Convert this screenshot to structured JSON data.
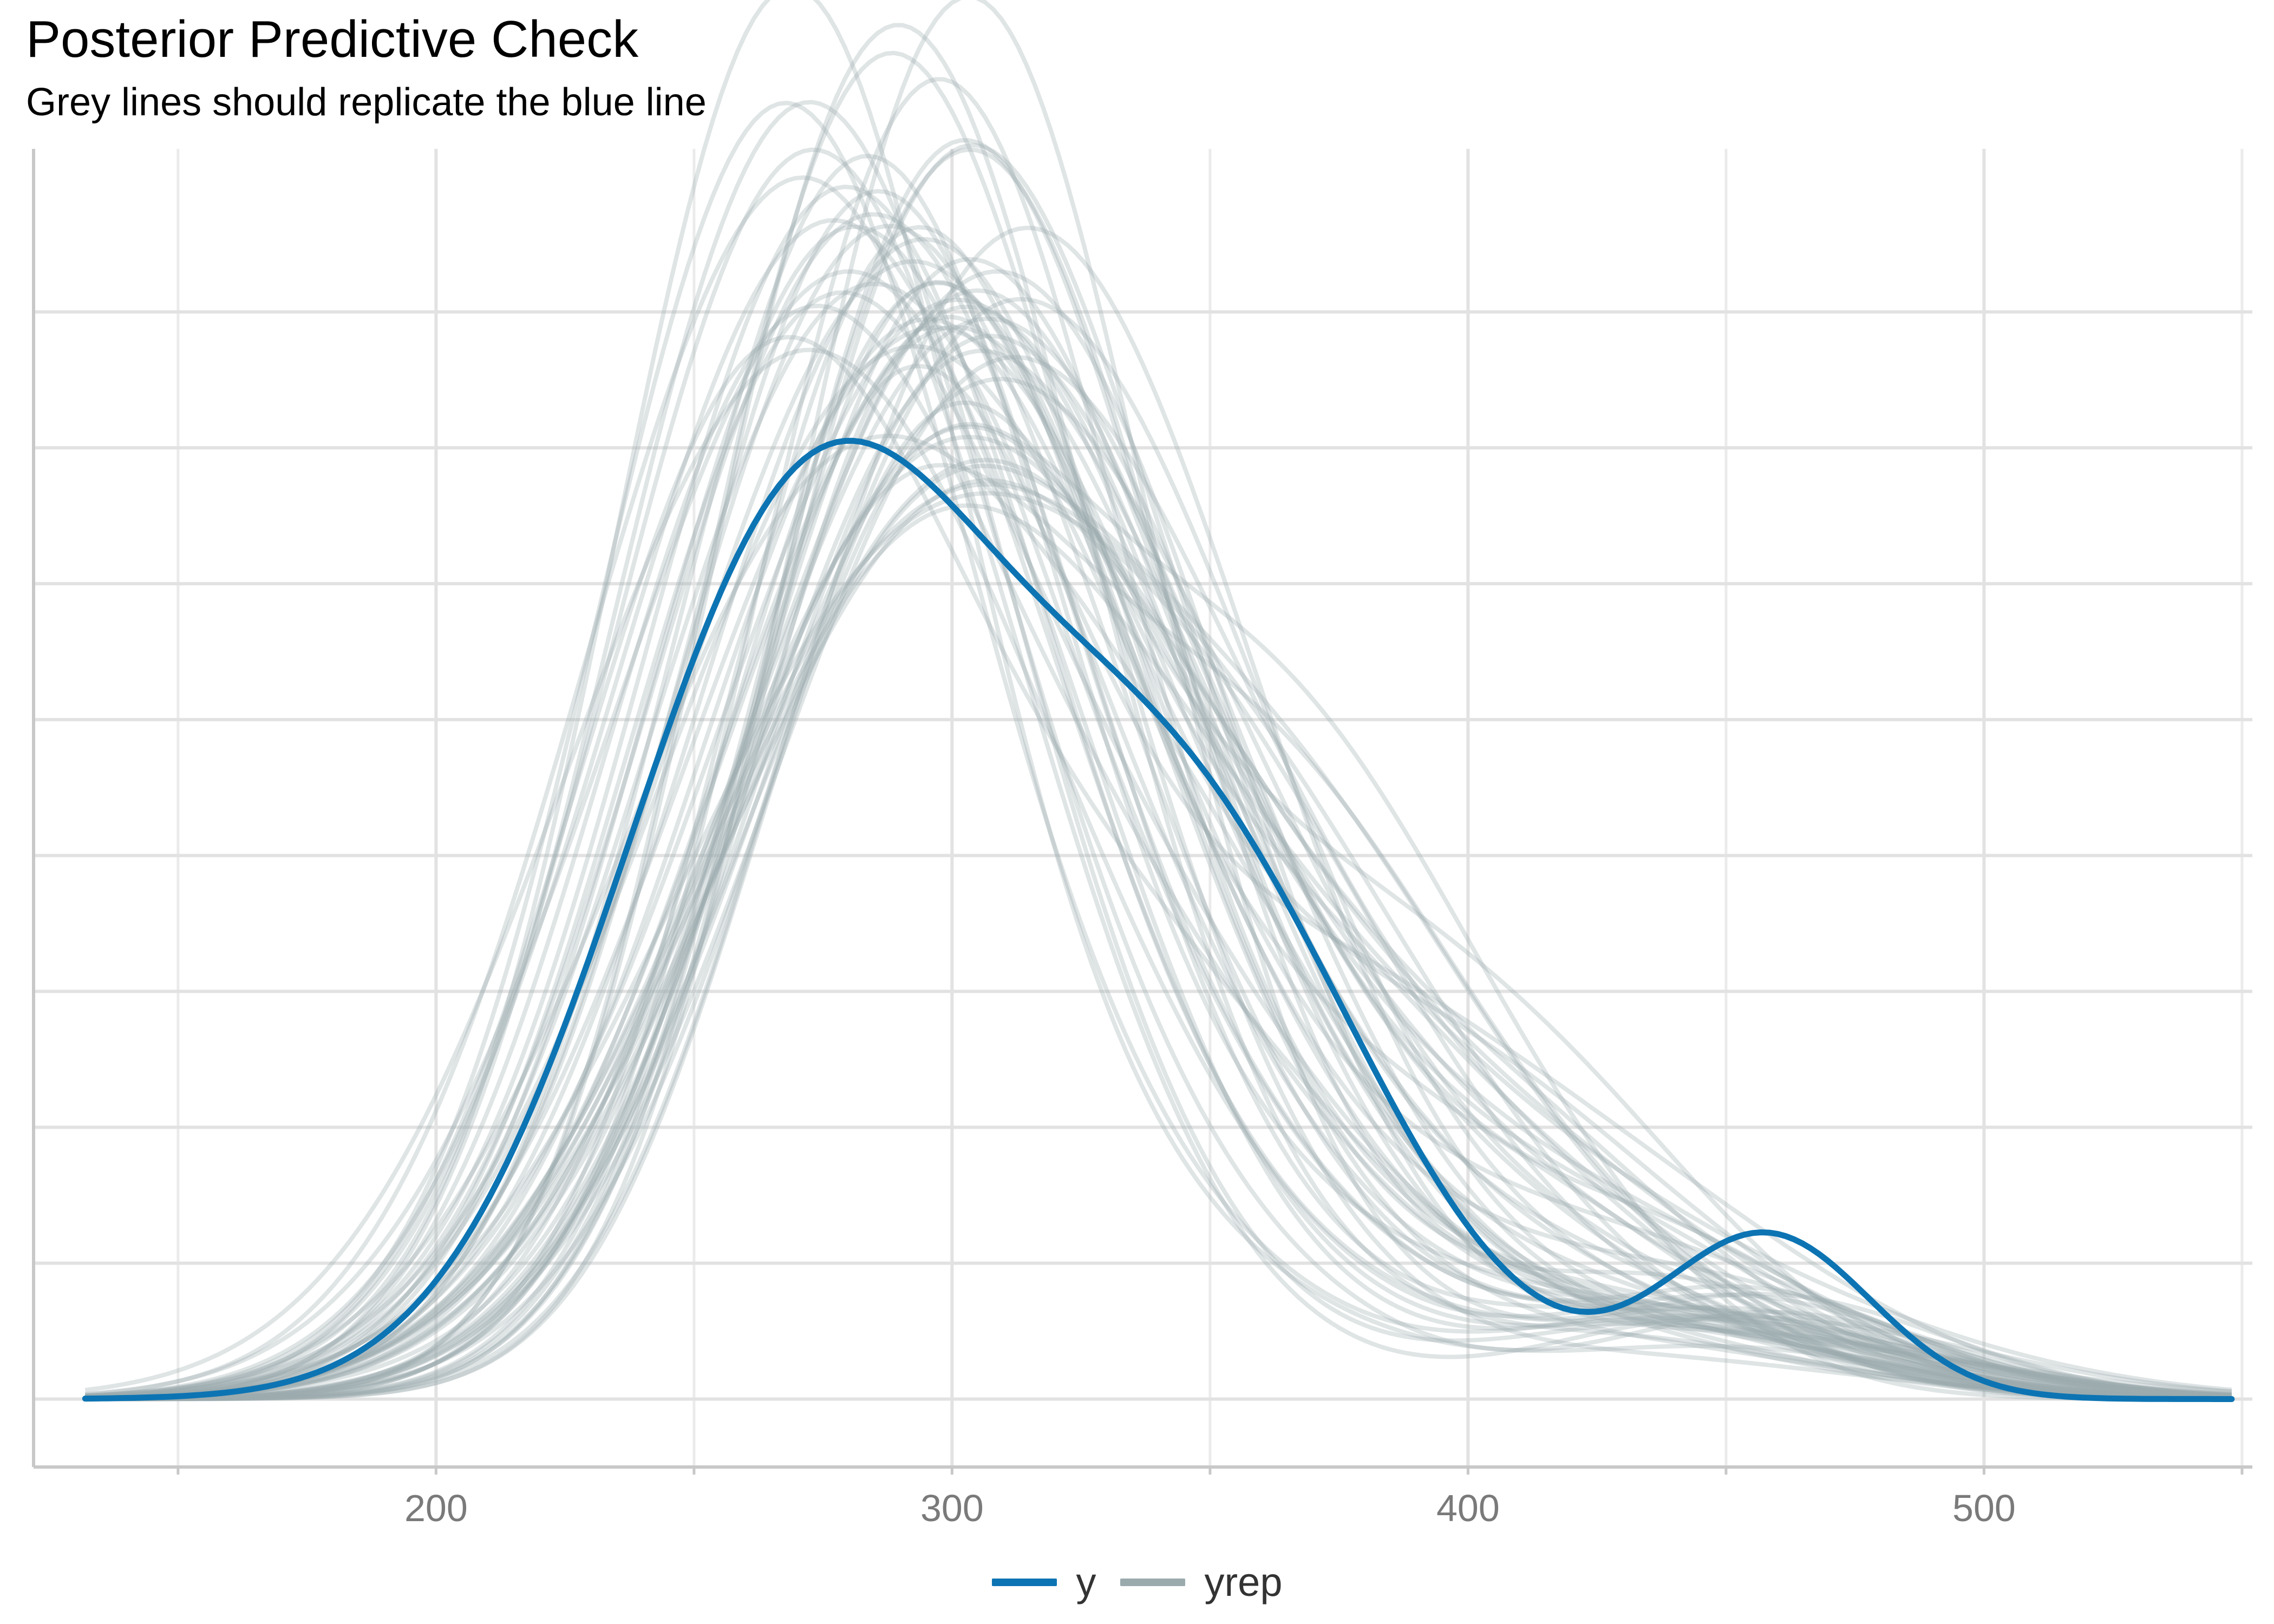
{
  "chart_data": {
    "type": "line",
    "title": "Posterior Predictive Check",
    "subtitle": "Grey lines should replicate the blue line",
    "xlabel": "",
    "ylabel": "",
    "xlim": [
      122,
      552
    ],
    "ylim": [
      -0.0005,
      0.0092
    ],
    "x_ticks": [
      200,
      300,
      400,
      500
    ],
    "x_tick_labels": [
      "200",
      "300",
      "400",
      "500"
    ],
    "x_minor_gridlines": [
      150,
      250,
      350,
      450,
      550
    ],
    "y_gridlines": [
      0,
      0.001,
      0.002,
      0.003,
      0.004,
      0.005,
      0.006,
      0.007,
      0.008
    ],
    "y_tick_labels_shown": false,
    "grid": true,
    "legend_position": "bottom",
    "x_range_drawn": [
      132,
      548
    ],
    "colors": {
      "y": "#0d74b3",
      "yrep": "#9aaaad"
    },
    "series": [
      {
        "name": "y",
        "density_components": [
          {
            "weight": 0.58,
            "mean": 272,
            "sd": 36
          },
          {
            "weight": 0.36,
            "mean": 345,
            "sd": 36
          },
          {
            "weight": 0.06,
            "mean": 458,
            "sd": 20
          }
        ]
      },
      {
        "name": "yrep",
        "replicate_count": 60,
        "typical_peak_x": [
          270,
          310
        ],
        "typical_peak_density": [
          0.0068,
          0.0081
        ],
        "typical_sd": [
          50,
          60
        ]
      }
    ]
  },
  "legend": {
    "items": [
      {
        "label": "y",
        "color": "#0d74b3"
      },
      {
        "label": "yrep",
        "color": "#9aaaad"
      }
    ]
  }
}
